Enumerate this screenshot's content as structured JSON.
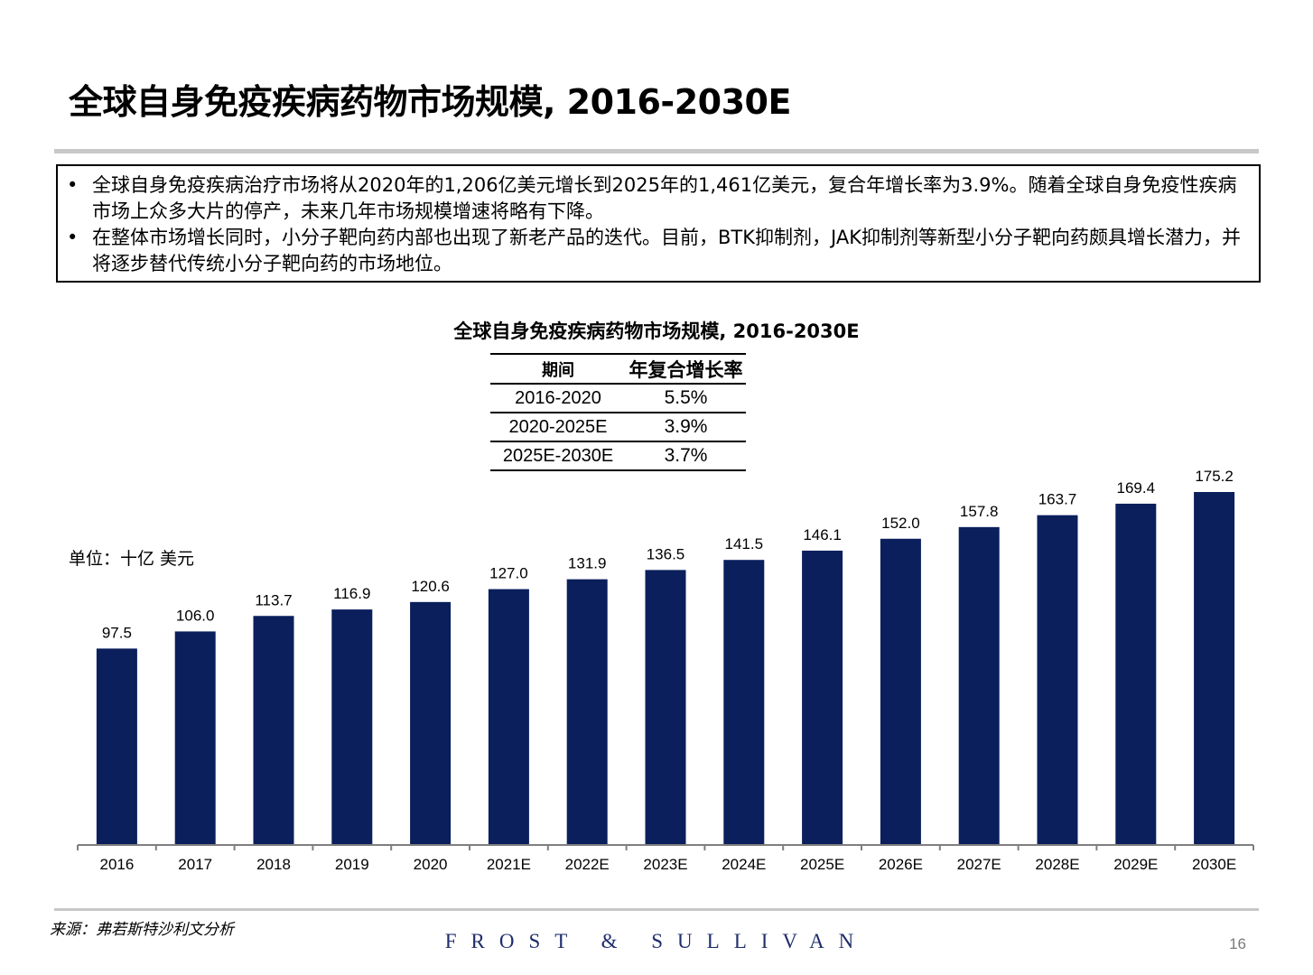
{
  "page": {
    "title": "全球自身免疫疾病药物市场规模, 2016-2030E",
    "bullets": [
      "全球自身免疫疾病治疗市场将从2020年的1,206亿美元增长到2025年的1,461亿美元，复合年增长率为3.9%。随着全球自身免疫性疾病市场上众多大片的停产，未来几年市场规模增速将略有下降。",
      "在整体市场增长同时，小分子靶向药内部也出现了新老产品的迭代。目前，BTK抑制剂，JAK抑制剂等新型小分子靶向药颇具增长潜力，并将逐步替代传统小分子靶向药的市场地位。"
    ],
    "bullet_symbol": "•",
    "unit_label": "单位：十亿 美元",
    "source": "来源：弗若斯特沙利文分析",
    "brand": "FROST & SULLIVAN",
    "page_number": "16"
  },
  "cagr_table": {
    "headers": [
      "期间",
      "年复合增长率"
    ],
    "rows": [
      [
        "2016-2020",
        "5.5%"
      ],
      [
        "2020-2025E",
        "3.9%"
      ],
      [
        "2025E-2030E",
        "3.7%"
      ]
    ]
  },
  "chart_data": {
    "type": "bar",
    "title": "全球自身免疫疾病药物市场规模, 2016-2030E",
    "xlabel": "",
    "ylabel": "",
    "categories": [
      "2016",
      "2017",
      "2018",
      "2019",
      "2020",
      "2021E",
      "2022E",
      "2023E",
      "2024E",
      "2025E",
      "2026E",
      "2027E",
      "2028E",
      "2029E",
      "2030E"
    ],
    "values": [
      97.5,
      106.0,
      113.7,
      116.9,
      120.6,
      127.0,
      131.9,
      136.5,
      141.5,
      146.1,
      152.0,
      157.8,
      163.7,
      169.4,
      175.2
    ],
    "data_labels": [
      "97.5",
      "106.0",
      "113.7",
      "116.9",
      "120.6",
      "127.0",
      "131.9",
      "136.5",
      "141.5",
      "146.1",
      "152.0",
      "157.8",
      "163.7",
      "169.4",
      "175.2"
    ],
    "ylim": [
      0,
      175.2
    ],
    "grid": false,
    "legend": "none",
    "bar_color": "#0a1f5c"
  }
}
